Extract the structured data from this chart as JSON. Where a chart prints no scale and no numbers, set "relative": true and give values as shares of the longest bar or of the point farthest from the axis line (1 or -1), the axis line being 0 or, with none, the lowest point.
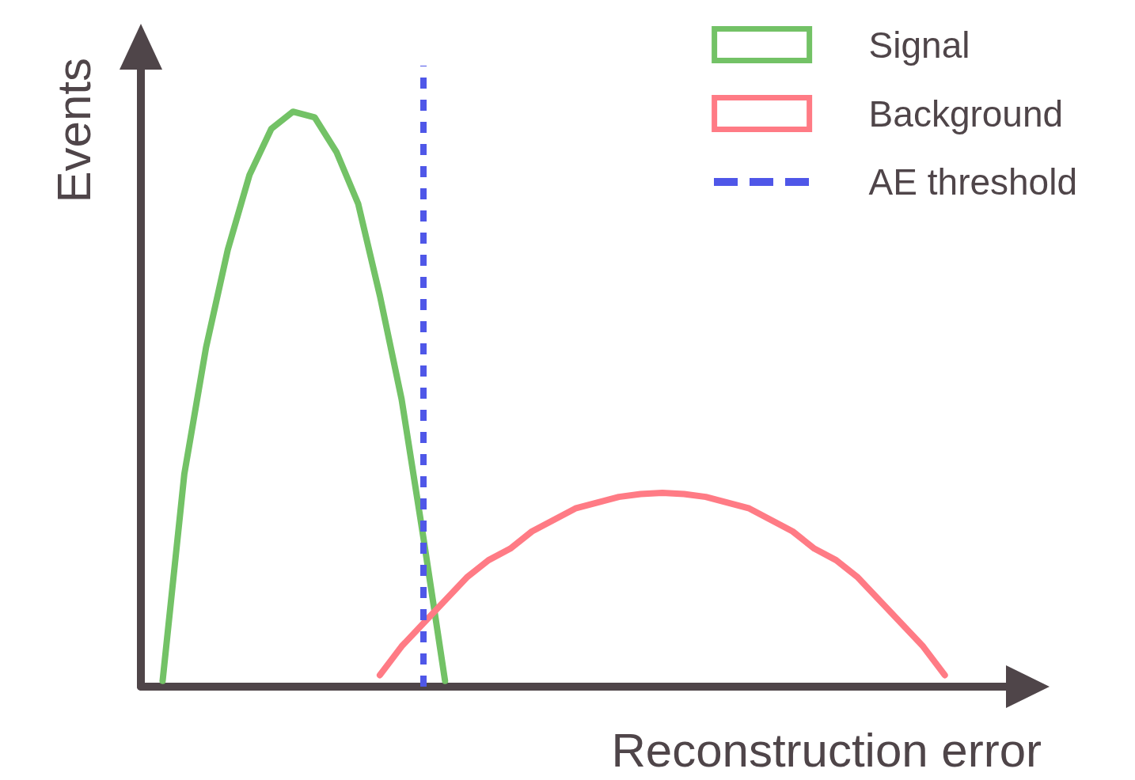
{
  "chart_data": {
    "type": "line",
    "xlabel": "Reconstruction error",
    "ylabel": "Events",
    "relative": true,
    "grid": false,
    "legend": "top right",
    "categories": [
      null,
      null,
      null,
      null,
      null,
      null,
      null,
      null,
      null,
      null,
      null,
      null,
      null,
      null,
      null,
      null,
      null,
      null,
      null,
      null,
      null,
      null,
      null,
      null,
      null,
      null,
      null,
      null,
      null,
      null,
      null,
      null,
      null,
      null,
      null,
      null,
      null,
      null,
      null,
      null,
      null
    ],
    "series": [
      {
        "name": "Signal",
        "color": "#73c266",
        "values": [
          null,
          0.01,
          0.37,
          0.59,
          0.76,
          0.89,
          0.97,
          1,
          0.99,
          0.93,
          0.84,
          0.68,
          0.5,
          0.26,
          0.01,
          null,
          null,
          null,
          null,
          null,
          null,
          null,
          null,
          null,
          null,
          null,
          null,
          null,
          null,
          null,
          null,
          null,
          null,
          null,
          null,
          null,
          null,
          null,
          null,
          null,
          null
        ]
      },
      {
        "name": "Background",
        "color": "#ff7b85",
        "values": [
          null,
          null,
          null,
          null,
          null,
          null,
          null,
          null,
          null,
          null,
          null,
          0.02,
          0.07,
          0.11,
          0.15,
          0.19,
          0.22,
          0.24,
          0.27,
          0.29,
          0.31,
          0.32,
          0.33,
          0.335,
          0.337,
          0.335,
          0.33,
          0.32,
          0.31,
          0.29,
          0.27,
          0.24,
          0.22,
          0.19,
          0.15,
          0.11,
          0.07,
          0.02,
          null,
          null,
          null
        ]
      }
    ],
    "ref_lines": [
      {
        "axis": "x",
        "label": "AE threshold",
        "color": "#4f57e8",
        "line_style": "dashed"
      }
    ]
  }
}
